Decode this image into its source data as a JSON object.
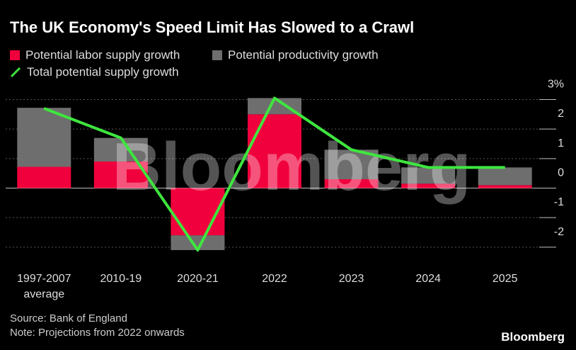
{
  "chart_data": {
    "type": "bar",
    "stacked": true,
    "title": "The UK Economy's Speed Limit Has Slowed to a Crawl",
    "categories": [
      "1997-2007 average",
      "2010-19",
      "2020-21",
      "2022",
      "2023",
      "2024",
      "2025"
    ],
    "series": [
      {
        "name": "Potential labor supply growth",
        "color": "#f0003c",
        "values": [
          0.72,
          0.9,
          -1.6,
          2.5,
          0.3,
          0.15,
          0.1
        ]
      },
      {
        "name": "Potential productivity growth",
        "color": "#6e6e6e",
        "values": [
          2.0,
          0.8,
          -0.5,
          0.55,
          1.0,
          0.55,
          0.6
        ]
      },
      {
        "name": "Total potential supply growth",
        "type": "line",
        "color": "#3ee63e",
        "values": [
          2.7,
          1.7,
          -2.1,
          3.05,
          1.3,
          0.7,
          0.7
        ]
      }
    ],
    "ylim": [
      -2.4,
      3.0
    ],
    "yticks": [
      {
        "value": 3,
        "label": "3%"
      },
      2,
      1,
      0,
      -1,
      -2
    ],
    "y_axis_side": "right",
    "grid": true,
    "source": "Source: Bank of England",
    "note": "Note: Projections from 2022 onwards",
    "logo": "Bloomberg"
  }
}
